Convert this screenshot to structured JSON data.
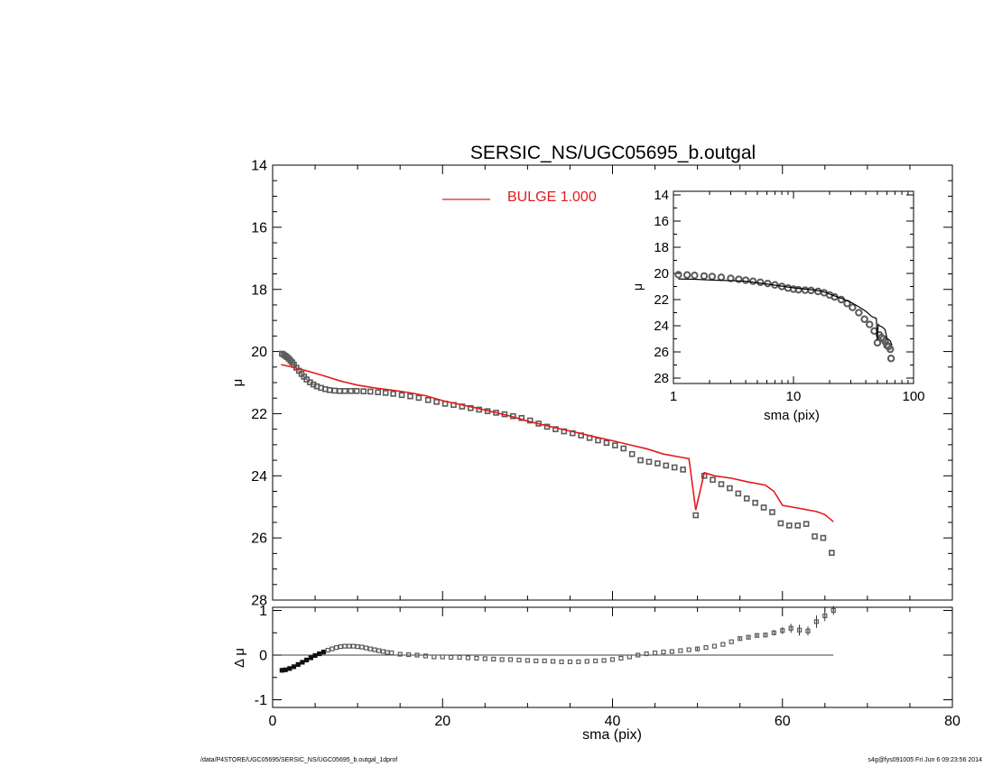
{
  "footer": {
    "left": "/data/P4STORE/UGC05695/SERSIC_NS/UGC05695_b.outgal_1dprof",
    "right": "s4g@fys091005  Fri Jun  6 09:23:56 2014"
  },
  "colors": {
    "model": "#e31a1c",
    "data": "#5a5a5a",
    "axes": "#000000"
  },
  "chart_data": [
    {
      "id": "main",
      "type": "scatter",
      "title": "SERSIC_NS/UGC05695_b.outgal",
      "xlabel": "",
      "ylabel": "μ",
      "xlim": [
        0,
        80
      ],
      "ylim": [
        28,
        14
      ],
      "y_reversed": true,
      "xticks": [
        0,
        20,
        40,
        60,
        80
      ],
      "yticks": [
        14,
        16,
        18,
        20,
        22,
        24,
        26,
        28
      ],
      "show_xtick_labels": false,
      "legend": [
        {
          "label": "BULGE  1.000",
          "color": "#e31a1c"
        }
      ],
      "series": [
        {
          "type": "scatter",
          "style": "square",
          "x": [
            1.1,
            1.3,
            1.5,
            1.7,
            1.9,
            2.1,
            2.3,
            2.5,
            2.8,
            3.1,
            3.4,
            3.7,
            4.0,
            4.4,
            4.8,
            5.2,
            5.7,
            6.2,
            6.7,
            7.3,
            7.9,
            8.5,
            9.2,
            9.9,
            10.7,
            11.5,
            12.4,
            13.3,
            14.2,
            15.2,
            16.2,
            17.2,
            18.3,
            19.3,
            20.3,
            21.3,
            22.3,
            23.3,
            24.3,
            25.3,
            26.3,
            27.3,
            28.3,
            29.3,
            30.3,
            31.3,
            32.3,
            33.3,
            34.3,
            35.3,
            36.3,
            37.3,
            38.3,
            39.3,
            40.3,
            41.3,
            42.3,
            43.3,
            44.3,
            45.3,
            46.3,
            47.3,
            48.3,
            49.8,
            50.8,
            51.8,
            52.8,
            53.8,
            54.8,
            55.8,
            56.8,
            57.8,
            58.8,
            59.8,
            60.8,
            61.8,
            62.8,
            63.8,
            64.8,
            65.8
          ],
          "y": [
            20.07,
            20.1,
            20.14,
            20.18,
            20.23,
            20.29,
            20.35,
            20.42,
            20.52,
            20.62,
            20.72,
            20.81,
            20.9,
            20.99,
            21.06,
            21.12,
            21.17,
            21.21,
            21.24,
            21.26,
            21.27,
            21.27,
            21.27,
            21.27,
            21.28,
            21.29,
            21.31,
            21.33,
            21.36,
            21.4,
            21.44,
            21.49,
            21.56,
            21.62,
            21.68,
            21.72,
            21.77,
            21.82,
            21.87,
            21.92,
            21.97,
            22.02,
            22.08,
            22.14,
            22.22,
            22.32,
            22.42,
            22.5,
            22.57,
            22.63,
            22.7,
            22.78,
            22.86,
            22.94,
            23.02,
            23.12,
            23.3,
            23.5,
            23.55,
            23.6,
            23.67,
            23.73,
            23.8,
            25.27,
            24.0,
            24.13,
            24.27,
            24.4,
            24.57,
            24.73,
            24.87,
            25.02,
            25.17,
            25.53,
            25.6,
            25.6,
            25.55,
            25.95,
            26.0,
            26.48
          ]
        },
        {
          "type": "line",
          "name": "BULGE  1.000",
          "color": "#e31a1c",
          "x": [
            1.0,
            2.0,
            3.0,
            4.0,
            6.0,
            8.0,
            10.0,
            12.0,
            14.0,
            16.0,
            18.0,
            20.0,
            22.0,
            24.0,
            26.0,
            28.0,
            30.0,
            32.0,
            34.0,
            36.0,
            38.0,
            40.0,
            42.0,
            44.0,
            46.0,
            48.0,
            49.0,
            49.8,
            50.8,
            52.0,
            54.0,
            56.0,
            58.0,
            59.0,
            60.0,
            62.0,
            64.0,
            65.0,
            66.0
          ],
          "y": [
            20.42,
            20.48,
            20.55,
            20.62,
            20.78,
            20.95,
            21.08,
            21.17,
            21.24,
            21.32,
            21.42,
            21.58,
            21.7,
            21.82,
            21.95,
            22.08,
            22.24,
            22.37,
            22.5,
            22.62,
            22.75,
            22.87,
            23.0,
            23.13,
            23.3,
            23.4,
            23.45,
            25.1,
            23.9,
            24.0,
            24.08,
            24.2,
            24.3,
            24.5,
            24.95,
            25.05,
            25.15,
            25.25,
            25.48
          ]
        }
      ]
    },
    {
      "id": "residual",
      "type": "scatter",
      "title": "",
      "xlabel": "sma (pix)",
      "ylabel": "Δ μ",
      "xlim": [
        0,
        80
      ],
      "ylim": [
        -1.05,
        1.05
      ],
      "xticks": [
        0,
        20,
        40,
        60,
        80
      ],
      "xtick_labels": [
        "0",
        "20",
        "40",
        "60",
        "80"
      ],
      "yticks": [
        -1,
        0,
        1
      ],
      "ytick_labels": [
        "-1",
        "0",
        "1"
      ],
      "zero_line": {
        "x": [
          0,
          66
        ],
        "y": 0
      },
      "series": [
        {
          "type": "scatter",
          "style": "square",
          "x": [
            1.1,
            1.5,
            2.0,
            2.5,
            3.0,
            3.5,
            4.0,
            4.5,
            5.0,
            5.5,
            6.0,
            6.5,
            7.0,
            7.5,
            8.0,
            8.5,
            9.0,
            9.5,
            10.0,
            10.5,
            11.0,
            11.5,
            12.0,
            12.5,
            13.0,
            13.5,
            14.0,
            15.0,
            16.0,
            17.0,
            18.0,
            19.0,
            20.0,
            21.0,
            22.0,
            23.0,
            24.0,
            25.0,
            26.0,
            27.0,
            28.0,
            29.0,
            30.0,
            31.0,
            32.0,
            33.0,
            34.0,
            35.0,
            36.0,
            37.0,
            38.0,
            39.0,
            40.0,
            41.0,
            42.0,
            43.0,
            44.0,
            45.0,
            46.0,
            47.0,
            48.0,
            49.0,
            50.0,
            51.0,
            52.0,
            53.0,
            54.0,
            55.0,
            56.0,
            57.0,
            58.0,
            59.0,
            60.0,
            61.0,
            62.0,
            63.0,
            64.0,
            65.0,
            66.0
          ],
          "y": [
            -0.34,
            -0.33,
            -0.3,
            -0.26,
            -0.21,
            -0.16,
            -0.11,
            -0.06,
            -0.01,
            0.03,
            0.07,
            0.11,
            0.14,
            0.17,
            0.19,
            0.2,
            0.2,
            0.2,
            0.19,
            0.18,
            0.16,
            0.14,
            0.12,
            0.1,
            0.08,
            0.06,
            0.05,
            0.02,
            0.01,
            0.0,
            -0.02,
            -0.04,
            -0.04,
            -0.05,
            -0.05,
            -0.06,
            -0.07,
            -0.08,
            -0.09,
            -0.1,
            -0.1,
            -0.11,
            -0.12,
            -0.13,
            -0.13,
            -0.14,
            -0.15,
            -0.15,
            -0.15,
            -0.14,
            -0.13,
            -0.12,
            -0.1,
            -0.07,
            -0.04,
            0.0,
            0.03,
            0.05,
            0.07,
            0.08,
            0.1,
            0.12,
            0.14,
            0.17,
            0.2,
            0.24,
            0.3,
            0.37,
            0.4,
            0.44,
            0.45,
            0.5,
            0.55,
            0.6,
            0.56,
            0.54,
            0.75,
            0.88,
            1.0
          ],
          "err": [
            0.02,
            0.02,
            0.02,
            0.02,
            0.02,
            0.02,
            0.02,
            0.02,
            0.02,
            0.02,
            0.02,
            0.02,
            0.02,
            0.02,
            0.02,
            0.02,
            0.02,
            0.02,
            0.02,
            0.02,
            0.02,
            0.02,
            0.02,
            0.02,
            0.02,
            0.02,
            0.02,
            0.02,
            0.02,
            0.02,
            0.02,
            0.02,
            0.02,
            0.02,
            0.02,
            0.02,
            0.02,
            0.02,
            0.02,
            0.02,
            0.02,
            0.02,
            0.02,
            0.02,
            0.02,
            0.02,
            0.02,
            0.02,
            0.02,
            0.02,
            0.02,
            0.02,
            0.02,
            0.02,
            0.02,
            0.02,
            0.02,
            0.02,
            0.02,
            0.02,
            0.02,
            0.02,
            0.05,
            0.03,
            0.03,
            0.03,
            0.03,
            0.04,
            0.04,
            0.04,
            0.05,
            0.06,
            0.08,
            0.1,
            0.12,
            0.1,
            0.14,
            0.12,
            0.1
          ]
        }
      ]
    },
    {
      "id": "inset",
      "type": "scatter",
      "title": "",
      "xlabel": "sma (pix)",
      "ylabel": "μ",
      "xscale": "log",
      "xlim": [
        1,
        100
      ],
      "ylim": [
        28,
        14
      ],
      "y_reversed": true,
      "xticks": [
        1,
        10,
        100
      ],
      "xtick_labels": [
        "1",
        "10",
        "100"
      ],
      "yticks": [
        14,
        16,
        18,
        20,
        22,
        24,
        26,
        28
      ],
      "ytick_labels": [
        "14",
        "16",
        "18",
        "20",
        "22",
        "24",
        "26",
        "28"
      ],
      "series": [
        {
          "type": "scatter",
          "style": "circle",
          "x": [
            1.1,
            1.3,
            1.5,
            1.8,
            2.1,
            2.5,
            3.0,
            3.5,
            4.0,
            4.6,
            5.3,
            6.1,
            7.0,
            8.0,
            9.0,
            10.0,
            11.0,
            12.5,
            14.0,
            16.0,
            18.0,
            20.0,
            22.0,
            25.0,
            28.0,
            31.0,
            35.0,
            39.0,
            43.0,
            47.0,
            50.0,
            52.0,
            54.0,
            56.0,
            58.0,
            60.0,
            62.0,
            64.0,
            65.0
          ],
          "y": [
            20.1,
            20.12,
            20.15,
            20.2,
            20.24,
            20.3,
            20.38,
            20.45,
            20.52,
            20.6,
            20.68,
            20.77,
            20.88,
            21.0,
            21.12,
            21.2,
            21.25,
            21.28,
            21.3,
            21.38,
            21.48,
            21.65,
            21.8,
            22.0,
            22.3,
            22.6,
            23.0,
            23.5,
            23.9,
            24.4,
            25.3,
            24.7,
            24.9,
            25.0,
            25.2,
            25.5,
            25.6,
            25.8,
            26.5
          ]
        },
        {
          "type": "line",
          "color": "#000000",
          "x": [
            1.1,
            1.5,
            2.0,
            3.0,
            4.0,
            5.0,
            7.0,
            10.0,
            12.0,
            14.0,
            16.0,
            18.0,
            20.0,
            25.0,
            30.0,
            35.0,
            40.0,
            45.0,
            48.0,
            49.0,
            49.8,
            50.8,
            52.0,
            55.0,
            58.0,
            60.0,
            62.0,
            64.0,
            66.0
          ],
          "y": [
            20.42,
            20.45,
            20.5,
            20.55,
            20.6,
            20.72,
            20.9,
            21.1,
            21.18,
            21.24,
            21.32,
            21.42,
            21.58,
            21.9,
            22.2,
            22.55,
            22.9,
            23.3,
            23.4,
            23.45,
            25.1,
            23.9,
            24.0,
            24.1,
            24.3,
            24.95,
            25.05,
            25.15,
            25.48
          ]
        }
      ]
    }
  ]
}
